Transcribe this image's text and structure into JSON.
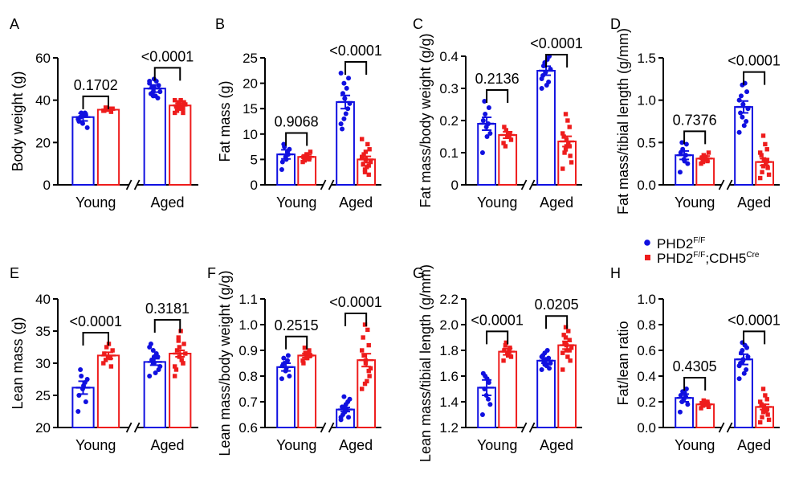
{
  "colors": {
    "control": "#1010e0",
    "treated": "#ee1c1c",
    "axis": "#000000"
  },
  "legend": {
    "items": [
      {
        "marker": "circle",
        "color": "#1010e0",
        "base": "PHD2",
        "sup1": "F/F",
        "mid": "",
        "sup2": ""
      },
      {
        "marker": "square",
        "color": "#ee1c1c",
        "base": "PHD2",
        "sup1": "F/F",
        "mid": ";CDH5",
        "sup2": "Cre"
      }
    ]
  },
  "chart_data": [
    {
      "panel": "A",
      "type": "bar",
      "ylabel": "Body weight (g)",
      "ylim": [
        0,
        60
      ],
      "ticks": [
        0,
        20,
        40,
        60
      ],
      "tick_labels": [
        "0",
        "20",
        "40",
        "60"
      ],
      "groups": [
        "Young",
        "Aged"
      ],
      "series": [
        {
          "name": "PHD2F/F",
          "values": [
            32,
            45.5
          ],
          "sem": [
            1.8,
            1.7
          ]
        },
        {
          "name": "PHD2F/F;CDH5Cre",
          "values": [
            35.5,
            37.5
          ],
          "sem": [
            0.5,
            1.0
          ]
        }
      ],
      "points": [
        [
          31,
          34,
          29,
          33,
          27,
          30,
          32,
          33,
          34
        ],
        [
          35,
          36,
          35.5,
          34.5,
          36,
          35,
          36.5,
          35.5,
          36
        ],
        [
          49,
          44,
          50,
          41,
          47,
          43,
          46,
          42,
          49,
          44,
          48,
          42,
          46
        ],
        [
          40,
          36,
          38,
          34,
          39,
          37,
          35,
          40,
          36,
          38,
          34,
          39,
          37,
          36
        ]
      ],
      "pvalues": [
        "0.1702",
        "<0.0001"
      ]
    },
    {
      "panel": "B",
      "type": "bar",
      "ylabel": "Fat mass (g)",
      "ylim": [
        0,
        25
      ],
      "ticks": [
        0,
        5,
        10,
        15,
        20,
        25
      ],
      "tick_labels": [
        "0",
        "5",
        "10",
        "15",
        "20",
        "25"
      ],
      "groups": [
        "Young",
        "Aged"
      ],
      "series": [
        {
          "name": "PHD2F/F",
          "values": [
            6,
            16.3
          ],
          "sem": [
            0.9,
            1.3
          ]
        },
        {
          "name": "PHD2F/F;CDH5Cre",
          "values": [
            5.5,
            5.0
          ],
          "sem": [
            0.4,
            0.6
          ]
        }
      ],
      "points": [
        [
          3,
          7.5,
          5.5,
          6,
          7,
          4.5,
          8,
          5,
          6.5
        ],
        [
          4.5,
          5.5,
          6,
          5,
          6.5,
          5.5,
          4.8,
          6,
          5.2
        ],
        [
          12,
          20,
          17,
          15,
          21,
          11,
          18,
          14,
          19,
          16,
          22,
          13,
          17
        ],
        [
          9,
          3,
          5,
          2,
          7,
          4,
          6,
          3.5,
          8,
          4.5,
          5.5,
          2.5,
          6.5,
          3.8
        ]
      ],
      "pvalues": [
        "0.9068",
        "<0.0001"
      ]
    },
    {
      "panel": "C",
      "type": "bar",
      "ylabel": "Fat mass/body weight (g/g)",
      "ylim": [
        0,
        0.4
      ],
      "ticks": [
        0,
        0.1,
        0.2,
        0.3,
        0.4
      ],
      "tick_labels": [
        "0",
        "0.1",
        "0.2",
        "0.3",
        "0.4"
      ],
      "groups": [
        "Young",
        "Aged"
      ],
      "series": [
        {
          "name": "PHD2F/F",
          "values": [
            0.19,
            0.355
          ],
          "sem": [
            0.02,
            0.014
          ]
        },
        {
          "name": "PHD2F/F;CDH5Cre",
          "values": [
            0.155,
            0.135
          ],
          "sem": [
            0.01,
            0.016
          ]
        }
      ],
      "points": [
        [
          0.1,
          0.22,
          0.18,
          0.24,
          0.16,
          0.2,
          0.26,
          0.15,
          0.19
        ],
        [
          0.13,
          0.17,
          0.15,
          0.16,
          0.14,
          0.18,
          0.12,
          0.16,
          0.15
        ],
        [
          0.3,
          0.38,
          0.35,
          0.32,
          0.4,
          0.34,
          0.37,
          0.31,
          0.39,
          0.36,
          0.33,
          0.38,
          0.35
        ],
        [
          0.05,
          0.22,
          0.12,
          0.18,
          0.09,
          0.15,
          0.1,
          0.2,
          0.13,
          0.07,
          0.16,
          0.11,
          0.14,
          0.12
        ]
      ],
      "pvalues": [
        "0.2136",
        "<0.0001"
      ]
    },
    {
      "panel": "D",
      "type": "bar",
      "ylabel": "Fat mass/tibial length (g/mm)",
      "ylim": [
        0,
        1.5
      ],
      "ticks": [
        0,
        0.5,
        1.0,
        1.5
      ],
      "tick_labels": [
        "0.0",
        "0.5",
        "1.0",
        "1.5"
      ],
      "groups": [
        "Young",
        "Aged"
      ],
      "series": [
        {
          "name": "PHD2F/F",
          "values": [
            0.35,
            0.92
          ],
          "sem": [
            0.05,
            0.07
          ]
        },
        {
          "name": "PHD2F/F;CDH5Cre",
          "values": [
            0.31,
            0.27
          ],
          "sem": [
            0.03,
            0.04
          ]
        }
      ],
      "points": [
        [
          0.15,
          0.42,
          0.3,
          0.48,
          0.25,
          0.38,
          0.5,
          0.28,
          0.35
        ],
        [
          0.25,
          0.35,
          0.3,
          0.28,
          0.38,
          0.32,
          0.27,
          0.33,
          0.3
        ],
        [
          0.62,
          1.18,
          0.95,
          0.75,
          1.1,
          0.85,
          1.05,
          0.7,
          1.2,
          0.9,
          1.0,
          0.8,
          0.95
        ],
        [
          0.08,
          0.58,
          0.3,
          0.42,
          0.2,
          0.35,
          0.15,
          0.48,
          0.25,
          0.12,
          0.38,
          0.22,
          0.3,
          0.28
        ]
      ],
      "pvalues": [
        "0.7376",
        "<0.0001"
      ]
    },
    {
      "panel": "E",
      "type": "bar",
      "ylabel": "Lean mass (g)",
      "ylim": [
        20,
        40
      ],
      "ticks": [
        20,
        25,
        30,
        35,
        40
      ],
      "tick_labels": [
        "20",
        "25",
        "30",
        "35",
        "40"
      ],
      "groups": [
        "Young",
        "Aged"
      ],
      "series": [
        {
          "name": "PHD2F/F",
          "values": [
            26.2,
            30.2
          ],
          "sem": [
            1.0,
            0.5
          ]
        },
        {
          "name": "PHD2F/F;CDH5Cre",
          "values": [
            31.2,
            31.5
          ],
          "sem": [
            0.5,
            0.5
          ]
        }
      ],
      "points": [
        [
          22.5,
          28,
          26,
          24,
          27.5,
          25,
          29,
          26.5,
          27
        ],
        [
          30,
          32.5,
          31,
          29.5,
          32,
          31.5,
          30.5,
          33,
          30.8
        ],
        [
          28,
          32,
          30,
          31,
          29,
          33,
          30.5,
          28.5,
          31.5,
          29.5,
          32.5,
          30,
          31
        ],
        [
          28,
          34,
          31,
          30,
          33,
          29,
          32,
          35,
          30.5,
          31.5,
          29.5,
          33.5,
          32.5,
          30
        ]
      ],
      "pvalues": [
        "<0.0001",
        "0.3181"
      ]
    },
    {
      "panel": "F",
      "type": "bar",
      "ylabel": "Lean mass/body weight (g/g)",
      "ylim": [
        0.6,
        1.1
      ],
      "ticks": [
        0.6,
        0.7,
        0.8,
        0.9,
        1.0,
        1.1
      ],
      "tick_labels": [
        "0.6",
        "0.7",
        "0.8",
        "0.9",
        "1.0",
        "1.1"
      ],
      "groups": [
        "Young",
        "Aged"
      ],
      "series": [
        {
          "name": "PHD2F/F",
          "values": [
            0.835,
            0.67
          ],
          "sem": [
            0.015,
            0.008
          ]
        },
        {
          "name": "PHD2F/F;CDH5Cre",
          "values": [
            0.88,
            0.862
          ],
          "sem": [
            0.008,
            0.025
          ]
        }
      ],
      "points": [
        [
          0.79,
          0.85,
          0.82,
          0.88,
          0.8,
          0.84,
          0.87,
          0.83,
          0.86
        ],
        [
          0.86,
          0.89,
          0.87,
          0.9,
          0.88,
          0.85,
          0.91,
          0.87,
          0.89
        ],
        [
          0.63,
          0.72,
          0.66,
          0.7,
          0.64,
          0.68,
          0.65,
          0.69,
          0.67,
          0.71,
          0.64,
          0.68,
          0.66
        ],
        [
          0.75,
          1.0,
          0.85,
          0.92,
          0.8,
          0.95,
          0.88,
          0.78,
          0.98,
          0.83,
          0.9,
          0.77,
          0.86,
          0.82
        ]
      ],
      "pvalues": [
        "0.2515",
        "<0.0001"
      ]
    },
    {
      "panel": "G",
      "type": "bar",
      "ylabel": "Lean mass/tibial length (g/mm)",
      "ylim": [
        1.2,
        2.2
      ],
      "ticks": [
        1.2,
        1.4,
        1.6,
        1.8,
        2.0,
        2.2
      ],
      "tick_labels": [
        "1.2",
        "1.4",
        "1.6",
        "1.8",
        "2.0",
        "2.2"
      ],
      "groups": [
        "Young",
        "Aged"
      ],
      "series": [
        {
          "name": "PHD2F/F",
          "values": [
            1.51,
            1.72
          ],
          "sem": [
            0.06,
            0.02
          ]
        },
        {
          "name": "PHD2F/F;CDH5Cre",
          "values": [
            1.79,
            1.84
          ],
          "sem": [
            0.025,
            0.03
          ]
        }
      ],
      "points": [
        [
          1.3,
          1.6,
          1.45,
          1.55,
          1.38,
          1.62,
          1.5,
          1.58,
          1.42
        ],
        [
          1.72,
          1.86,
          1.78,
          1.82,
          1.75,
          1.8,
          1.84,
          1.76,
          1.79
        ],
        [
          1.65,
          1.78,
          1.7,
          1.74,
          1.66,
          1.76,
          1.72,
          1.68,
          1.8,
          1.7,
          1.75,
          1.69,
          1.73
        ],
        [
          1.65,
          1.98,
          1.8,
          1.88,
          1.72,
          1.92,
          1.85,
          1.75,
          1.95,
          1.82,
          1.78,
          1.9,
          1.84,
          1.8
        ]
      ],
      "pvalues": [
        "<0.0001",
        "0.0205"
      ]
    },
    {
      "panel": "H",
      "type": "bar",
      "ylabel": "Fat/lean ratio",
      "ylim": [
        0,
        1.0
      ],
      "ticks": [
        0,
        0.2,
        0.4,
        0.6,
        0.8,
        1.0
      ],
      "tick_labels": [
        "0.0",
        "0.2",
        "0.4",
        "0.6",
        "0.8",
        "1.0"
      ],
      "groups": [
        "Young",
        "Aged"
      ],
      "series": [
        {
          "name": "PHD2F/F",
          "values": [
            0.23,
            0.53
          ],
          "sem": [
            0.03,
            0.04
          ]
        },
        {
          "name": "PHD2F/F;CDH5Cre",
          "values": [
            0.18,
            0.16
          ],
          "sem": [
            0.015,
            0.02
          ]
        }
      ],
      "points": [
        [
          0.12,
          0.28,
          0.22,
          0.3,
          0.18,
          0.25,
          0.2,
          0.27,
          0.24
        ],
        [
          0.15,
          0.21,
          0.18,
          0.2,
          0.16,
          0.19,
          0.17,
          0.2,
          0.18
        ],
        [
          0.38,
          0.66,
          0.52,
          0.45,
          0.62,
          0.5,
          0.58,
          0.42,
          0.64,
          0.55,
          0.48,
          0.6,
          0.53
        ],
        [
          0.04,
          0.3,
          0.15,
          0.22,
          0.1,
          0.18,
          0.08,
          0.25,
          0.13,
          0.06,
          0.2,
          0.12,
          0.17,
          0.14
        ]
      ],
      "pvalues": [
        "0.4305",
        "<0.0001"
      ]
    }
  ]
}
